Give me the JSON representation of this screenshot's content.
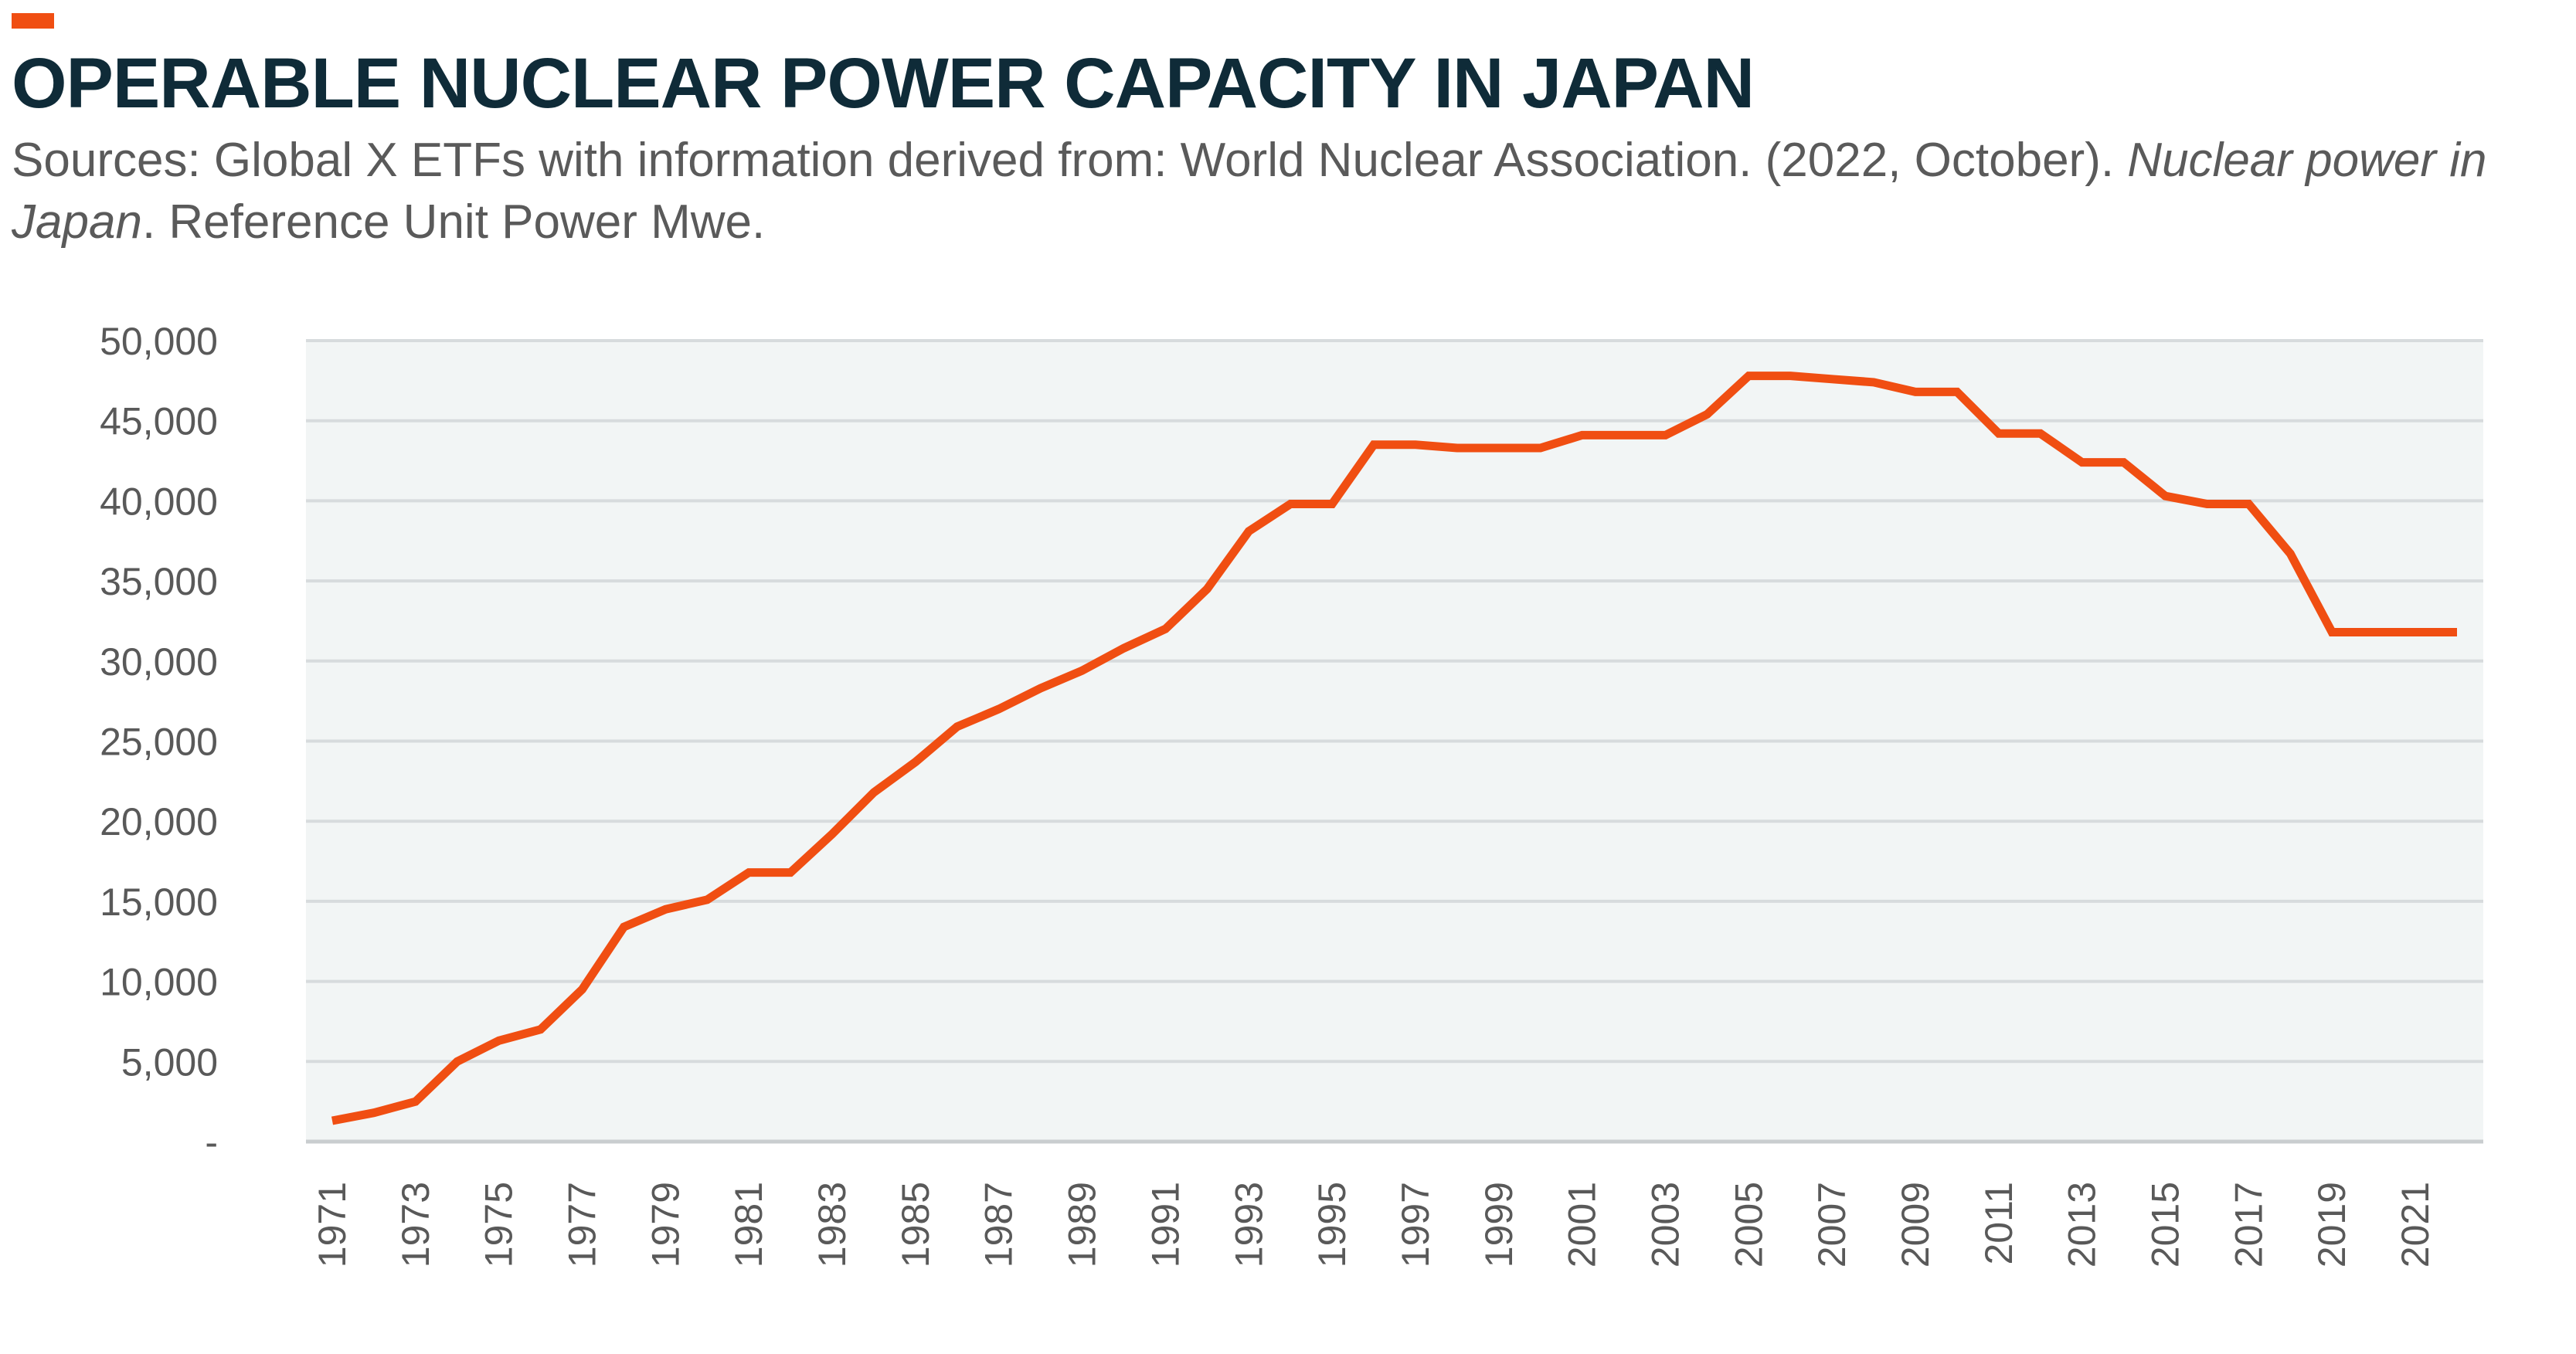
{
  "header": {
    "title": "OPERABLE NUCLEAR POWER CAPACITY IN JAPAN",
    "subtitle_part1": "Sources: Global X ETFs with information derived from: World Nuclear Association. (2022, October). ",
    "subtitle_italic1": "Nuclear power in Japan",
    "subtitle_part2": ". Reference Unit Power Mwe."
  },
  "colors": {
    "accent": "#f04e12",
    "line": "#f04e12",
    "plot_background": "#f2f5f5",
    "gridline": "#d7dbdd",
    "title": "#0f2b38",
    "text": "#595959"
  },
  "chart_data": {
    "type": "line",
    "title": "OPERABLE NUCLEAR POWER CAPACITY IN JAPAN",
    "xlabel": "",
    "ylabel": "",
    "ylim": [
      0,
      50000
    ],
    "grid": true,
    "legend": "none",
    "y_ticks": [
      0,
      5000,
      10000,
      15000,
      20000,
      25000,
      30000,
      35000,
      40000,
      45000,
      50000
    ],
    "y_tick_labels": [
      "-",
      "5,000",
      "10,000",
      "15,000",
      "20,000",
      "25,000",
      "30,000",
      "35,000",
      "40,000",
      "45,000",
      "50,000"
    ],
    "x_tick_labels": [
      "1971",
      "1973",
      "1975",
      "1977",
      "1979",
      "1981",
      "1983",
      "1985",
      "1987",
      "1989",
      "1991",
      "1993",
      "1995",
      "1997",
      "1999",
      "2001",
      "2003",
      "2005",
      "2007",
      "2009",
      "2011",
      "2013",
      "2015",
      "2017",
      "2019",
      "2021"
    ],
    "x": [
      1971,
      1972,
      1973,
      1974,
      1975,
      1976,
      1977,
      1978,
      1979,
      1980,
      1981,
      1982,
      1983,
      1984,
      1985,
      1986,
      1987,
      1988,
      1989,
      1990,
      1991,
      1992,
      1993,
      1994,
      1995,
      1996,
      1997,
      1998,
      1999,
      2000,
      2001,
      2002,
      2003,
      2004,
      2005,
      2006,
      2007,
      2008,
      2009,
      2010,
      2011,
      2012,
      2013,
      2014,
      2015,
      2016,
      2017,
      2018,
      2019,
      2020,
      2021,
      2022
    ],
    "series": [
      {
        "values": [
          1300,
          1800,
          2500,
          5000,
          6300,
          7000,
          9500,
          13400,
          14500,
          15100,
          16800,
          16800,
          19200,
          21800,
          23700,
          25900,
          27000,
          28300,
          29400,
          30800,
          32000,
          34500,
          38100,
          39800,
          39800,
          43500,
          43500,
          43300,
          43300,
          43300,
          44100,
          44100,
          44100,
          45400,
          47800,
          47800,
          47600,
          47400,
          46800,
          46800,
          44200,
          44200,
          42400,
          42400,
          40300,
          39800,
          39800,
          36700,
          31800,
          31800,
          31800,
          31800
        ]
      }
    ]
  }
}
